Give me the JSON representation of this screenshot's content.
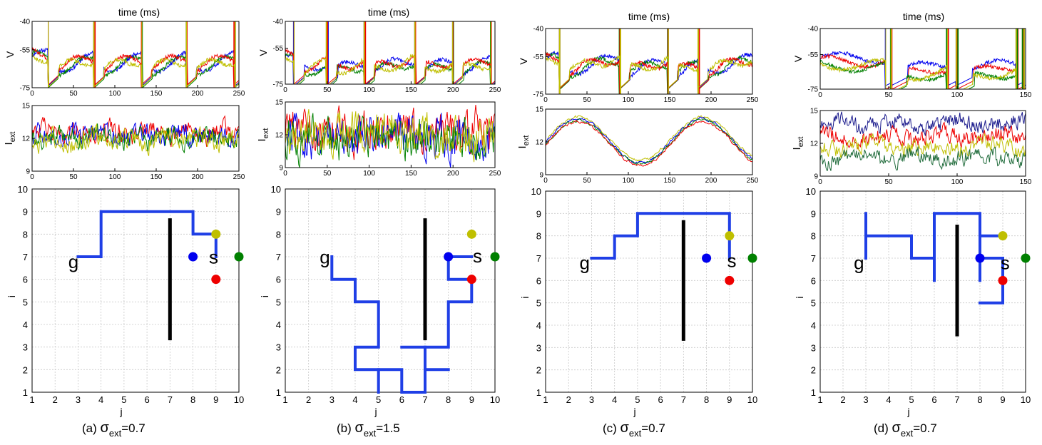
{
  "figure": {
    "colors": {
      "blue": "#0000ee",
      "green": "#008000",
      "red": "#ee0000",
      "yellow": "#bfbf00",
      "navy": "#1a1a8c",
      "darkgreen": "#1f6b3a",
      "path": "#1f3fe6",
      "wall": "#000000",
      "grid": "#c8c8c8"
    },
    "tick_labels_grid": [
      "1",
      "2",
      "3",
      "4",
      "5",
      "6",
      "7",
      "8",
      "9",
      "10"
    ]
  },
  "chart_data": [
    {
      "panel": "a",
      "caption": {
        "prefix": "(a)",
        "sigma": "σ",
        "sub": "ext",
        "value": "=0.7"
      },
      "voltage": {
        "type": "line",
        "title": "time (ms)",
        "ylabel": "V",
        "xlim": [
          0,
          250
        ],
        "ylim": [
          -75,
          -40
        ],
        "xticks": [
          0,
          50,
          100,
          150,
          200,
          250
        ],
        "yticks": [
          -40,
          -55,
          -75
        ],
        "spike_times_ms": [
          20,
          75,
          133,
          187,
          245
        ],
        "series": [
          {
            "color_key": "blue",
            "baseline": -66.0
          },
          {
            "color_key": "green",
            "baseline": -67.0
          },
          {
            "color_key": "red",
            "baseline": -65.5
          },
          {
            "color_key": "yellow",
            "baseline": -66.5
          }
        ]
      },
      "current": {
        "type": "line",
        "ylabel_main": "I",
        "ylabel_sub": "ext",
        "xlim": [
          0,
          250
        ],
        "ylim": [
          9,
          15
        ],
        "xticks": [
          0,
          50,
          100,
          150,
          200,
          250
        ],
        "yticks": [
          9,
          12,
          15
        ],
        "series": [
          {
            "color_key": "red",
            "mean": 12.5,
            "noise": 1.0
          },
          {
            "color_key": "blue",
            "mean": 12.2,
            "noise": 1.0
          },
          {
            "color_key": "green",
            "mean": 12.0,
            "noise": 1.0
          },
          {
            "color_key": "yellow",
            "mean": 11.9,
            "noise": 1.0
          }
        ]
      },
      "grid": {
        "type": "scatter",
        "xlabel": "j",
        "ylabel": "i",
        "xlim": [
          1,
          10
        ],
        "ylim": [
          1,
          10
        ],
        "goal_label": "g",
        "goal_pos": [
          2.8,
          6.5
        ],
        "start_label": "s",
        "start_pos": [
          8.9,
          6.7
        ],
        "wall": {
          "j": 7,
          "i_from": 3.3,
          "i_to": 8.7
        },
        "path_segments": [
          [
            [
              3,
              7
            ],
            [
              4,
              7
            ],
            [
              4,
              9
            ],
            [
              8,
              9
            ],
            [
              8,
              8
            ],
            [
              9,
              8
            ],
            [
              9,
              7
            ]
          ]
        ],
        "points": [
          {
            "j": 9,
            "i": 8,
            "color_key": "yellow"
          },
          {
            "j": 8,
            "i": 7,
            "color_key": "blue"
          },
          {
            "j": 10,
            "i": 7,
            "color_key": "green"
          },
          {
            "j": 9,
            "i": 6,
            "color_key": "red"
          }
        ]
      }
    },
    {
      "panel": "b",
      "caption": {
        "prefix": "(b)",
        "sigma": "σ",
        "sub": "ext",
        "value": "=1.5"
      },
      "voltage": {
        "type": "line",
        "title": "time (ms)",
        "ylabel": "V",
        "xlim": [
          0,
          250
        ],
        "ylim": [
          -75,
          -40
        ],
        "xticks": [
          0,
          50,
          100,
          150,
          200,
          250
        ],
        "yticks": [
          -40,
          -55,
          -75
        ],
        "spike_times_ms": [
          10,
          50,
          95,
          155,
          200,
          245
        ],
        "series": [
          {
            "color_key": "blue",
            "baseline": -68.0
          },
          {
            "color_key": "green",
            "baseline": -69.5
          },
          {
            "color_key": "red",
            "baseline": -67.0
          },
          {
            "color_key": "yellow",
            "baseline": -68.5
          }
        ]
      },
      "current": {
        "type": "line",
        "ylabel_main": "I",
        "ylabel_sub": "ext",
        "xlim": [
          0,
          250
        ],
        "ylim": [
          9,
          15
        ],
        "xticks": [
          0,
          50,
          100,
          150,
          200,
          250
        ],
        "yticks": [
          9,
          12,
          15
        ],
        "series": [
          {
            "color_key": "red",
            "mean": 12.3,
            "noise": 2.0
          },
          {
            "color_key": "blue",
            "mean": 11.8,
            "noise": 2.0
          },
          {
            "color_key": "green",
            "mean": 11.7,
            "noise": 2.0
          },
          {
            "color_key": "yellow",
            "mean": 12.1,
            "noise": 2.0
          }
        ]
      },
      "grid": {
        "type": "scatter",
        "xlabel": "j",
        "ylabel": "i",
        "xlim": [
          1,
          10
        ],
        "ylim": [
          1,
          10
        ],
        "goal_label": "g",
        "goal_pos": [
          2.7,
          6.7
        ],
        "start_label": "s",
        "start_pos": [
          9.25,
          6.75
        ],
        "wall": {
          "j": 7,
          "i_from": 3.3,
          "i_to": 8.7
        },
        "path_segments": [
          [
            [
              3,
              7
            ],
            [
              3,
              6
            ],
            [
              4,
              6
            ],
            [
              4,
              5
            ],
            [
              5,
              5
            ],
            [
              5,
              3
            ],
            [
              4,
              3
            ],
            [
              4,
              2
            ],
            [
              6,
              2
            ],
            [
              6,
              1
            ],
            [
              7,
              1
            ],
            [
              7,
              3
            ],
            [
              8,
              3
            ],
            [
              8,
              5
            ],
            [
              9,
              5
            ],
            [
              9,
              6
            ],
            [
              8,
              6
            ],
            [
              8,
              7
            ],
            [
              9,
              7
            ]
          ],
          [
            [
              5,
              2
            ],
            [
              5,
              1
            ]
          ],
          [
            [
              6,
              3
            ],
            [
              7,
              3
            ]
          ],
          [
            [
              7,
              2
            ],
            [
              8,
              2
            ]
          ]
        ],
        "points": [
          {
            "j": 9,
            "i": 8,
            "color_key": "yellow"
          },
          {
            "j": 8,
            "i": 7,
            "color_key": "blue"
          },
          {
            "j": 10,
            "i": 7,
            "color_key": "green"
          },
          {
            "j": 9,
            "i": 6,
            "color_key": "red"
          }
        ]
      }
    },
    {
      "panel": "c",
      "caption": {
        "prefix": "(c)",
        "sigma": "σ",
        "sub": "ext",
        "value": "=0.7"
      },
      "voltage": {
        "type": "line",
        "title": "time (ms)",
        "ylabel": "V",
        "xlim": [
          0,
          250
        ],
        "ylim": [
          -75,
          -40
        ],
        "xticks": [
          0,
          50,
          100,
          150,
          200,
          250
        ],
        "yticks": [
          -40,
          -55,
          -75
        ],
        "spike_times_ms": [
          18,
          90,
          148,
          185
        ],
        "series": [
          {
            "color_key": "blue",
            "baseline": -64.0
          },
          {
            "color_key": "green",
            "baseline": -64.5
          },
          {
            "color_key": "red",
            "baseline": -64.0
          },
          {
            "color_key": "yellow",
            "baseline": -63.5
          }
        ]
      },
      "current": {
        "type": "line",
        "ylabel_main": "I",
        "ylabel_sub": "ext",
        "xlim": [
          0,
          250
        ],
        "ylim": [
          9,
          15
        ],
        "xticks": [
          0,
          50,
          100,
          150,
          200,
          250
        ],
        "yticks": [
          9,
          12,
          15
        ],
        "sinusoid": {
          "mean": 12.0,
          "amplitude": 2.0,
          "period_ms": 150
        },
        "series": [
          {
            "color_key": "yellow",
            "offset": 0.3
          },
          {
            "color_key": "blue",
            "offset": 0.1
          },
          {
            "color_key": "green",
            "offset": 0.0
          },
          {
            "color_key": "red",
            "offset": -0.15
          }
        ]
      },
      "grid": {
        "type": "scatter",
        "xlabel": "j",
        "ylabel": "i",
        "xlim": [
          1,
          10
        ],
        "ylim": [
          1,
          10
        ],
        "goal_label": "g",
        "goal_pos": [
          2.7,
          6.5
        ],
        "start_label": "s",
        "start_pos": [
          9.1,
          6.6
        ],
        "wall": {
          "j": 7,
          "i_from": 3.3,
          "i_to": 8.7
        },
        "path_segments": [
          [
            [
              3,
              7
            ],
            [
              4,
              7
            ],
            [
              4,
              8
            ],
            [
              5,
              8
            ],
            [
              5,
              9
            ],
            [
              9,
              9
            ],
            [
              9,
              7
            ]
          ]
        ],
        "points": [
          {
            "j": 9,
            "i": 8,
            "color_key": "yellow"
          },
          {
            "j": 8,
            "i": 7,
            "color_key": "blue"
          },
          {
            "j": 10,
            "i": 7,
            "color_key": "green"
          },
          {
            "j": 9,
            "i": 6,
            "color_key": "red"
          }
        ]
      }
    },
    {
      "panel": "d",
      "caption": {
        "prefix": "(d)",
        "sigma": "σ",
        "sub": "ext",
        "value": "=0.7"
      },
      "voltage": {
        "type": "line",
        "title": "time (ms)",
        "ylabel": "V",
        "xlim": [
          0,
          150
        ],
        "ylim": [
          -75,
          -40
        ],
        "xticks": [
          0,
          50,
          100,
          150
        ],
        "yticks": [
          -40,
          -55,
          -75
        ],
        "spike_times_ms": [
          48,
          52,
          93,
          100,
          144,
          148
        ],
        "series": [
          {
            "color_key": "blue",
            "baseline": -65.0
          },
          {
            "color_key": "red",
            "baseline": -67.0
          },
          {
            "color_key": "green",
            "baseline": -70.0
          },
          {
            "color_key": "yellow",
            "baseline": -69.0
          }
        ]
      },
      "current": {
        "type": "line",
        "ylabel_main": "I",
        "ylabel_sub": "ext",
        "xlim": [
          0,
          150
        ],
        "ylim": [
          9,
          15
        ],
        "xticks": [
          0,
          50,
          100,
          150
        ],
        "yticks": [
          9,
          12,
          15
        ],
        "series": [
          {
            "color_key": "navy",
            "mean": 13.8,
            "noise": 0.8
          },
          {
            "color_key": "red",
            "mean": 12.6,
            "noise": 0.8
          },
          {
            "color_key": "yellow",
            "mean": 11.7,
            "noise": 0.8
          },
          {
            "color_key": "darkgreen",
            "mean": 10.7,
            "noise": 0.8
          }
        ]
      },
      "grid": {
        "type": "scatter",
        "xlabel": "j",
        "ylabel": "i",
        "xlim": [
          1,
          10
        ],
        "ylim": [
          1,
          10
        ],
        "goal_label": "g",
        "goal_pos": [
          2.7,
          6.5
        ],
        "start_label": "s",
        "start_pos": [
          9.1,
          6.5
        ],
        "wall": {
          "j": 7,
          "i_from": 3.5,
          "i_to": 8.5
        },
        "path_segments": [
          [
            [
              3,
              9
            ],
            [
              3,
              7
            ]
          ],
          [
            [
              3,
              8
            ],
            [
              5,
              8
            ],
            [
              5,
              7
            ],
            [
              6,
              7
            ],
            [
              6,
              6
            ]
          ],
          [
            [
              6,
              7
            ],
            [
              6,
              9
            ],
            [
              8,
              9
            ],
            [
              8,
              6
            ]
          ],
          [
            [
              8,
              8
            ],
            [
              9,
              8
            ]
          ],
          [
            [
              8,
              7
            ],
            [
              9,
              7
            ],
            [
              9,
              5
            ],
            [
              8,
              5
            ]
          ]
        ],
        "points": [
          {
            "j": 9,
            "i": 8,
            "color_key": "yellow"
          },
          {
            "j": 8,
            "i": 7,
            "color_key": "blue"
          },
          {
            "j": 10,
            "i": 7,
            "color_key": "green"
          },
          {
            "j": 9,
            "i": 6,
            "color_key": "red"
          }
        ]
      }
    }
  ]
}
